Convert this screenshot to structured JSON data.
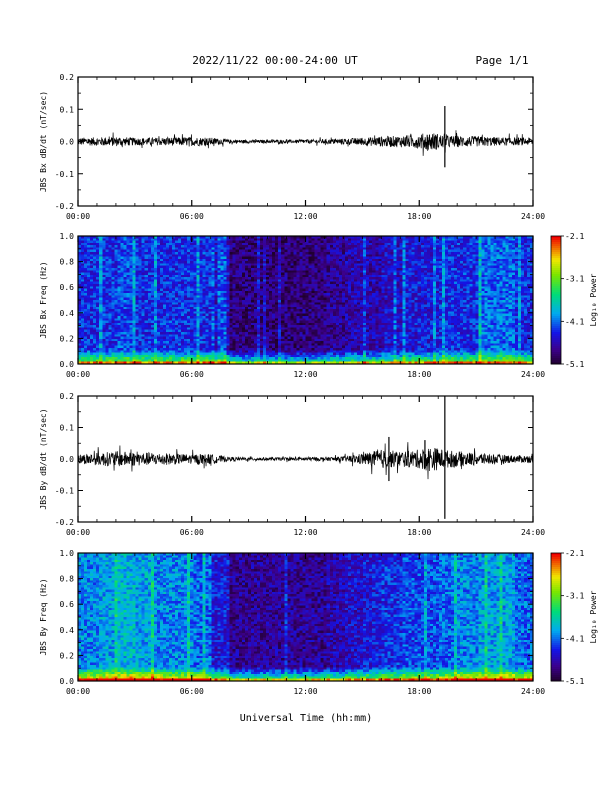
{
  "header": {
    "title": "2022/11/22  00:00-24:00 UT",
    "page": "Page 1/1"
  },
  "x_axis": {
    "label": "Universal Time (hh:mm)",
    "ticks": [
      "00:00",
      "06:00",
      "12:00",
      "18:00",
      "24:00"
    ]
  },
  "chart_data": [
    {
      "type": "line",
      "ylabel": "JBS Bx dB/dt (nT/sec)",
      "xlim": [
        0,
        24
      ],
      "ylim": [
        -0.2,
        0.2
      ],
      "yticks": [
        "0.2",
        "0.1",
        "0.0",
        "-0.1",
        "-0.2"
      ],
      "envelope": {
        "x_hours": [
          0,
          1,
          2,
          3,
          4,
          5,
          6,
          7,
          8,
          9,
          10,
          11,
          12,
          13,
          14,
          15,
          16,
          17,
          18,
          18.5,
          19,
          19.3,
          20,
          21,
          22,
          23,
          24
        ],
        "amplitude": [
          0.012,
          0.013,
          0.015,
          0.012,
          0.012,
          0.013,
          0.014,
          0.012,
          0.006,
          0.005,
          0.005,
          0.005,
          0.006,
          0.007,
          0.009,
          0.012,
          0.016,
          0.018,
          0.022,
          0.03,
          0.025,
          0.02,
          0.018,
          0.016,
          0.014,
          0.012,
          0.012
        ]
      },
      "spikes": [
        {
          "x_hour": 19.35,
          "max": 0.11,
          "min": -0.08
        }
      ]
    },
    {
      "type": "heatmap",
      "ylabel": "JBS Bx Freq (Hz)",
      "xlim": [
        0,
        24
      ],
      "ylim": [
        0.0,
        1.0
      ],
      "yticks": [
        "1.0",
        "0.8",
        "0.6",
        "0.4",
        "0.2",
        "0.0"
      ],
      "colorbar": {
        "label": "Log₁₀ Power",
        "ticks": [
          "-2.1",
          "-3.1",
          "-4.1",
          "-5.1"
        ],
        "range": [
          -5.1,
          -2.1
        ]
      },
      "level_by_hour": [
        -4.3,
        -4.3,
        -4.2,
        -4.3,
        -4.3,
        -4.3,
        -4.3,
        -4.5,
        -4.8,
        -4.8,
        -4.8,
        -4.8,
        -4.8,
        -4.7,
        -4.6,
        -4.6,
        -4.5,
        -4.4,
        -4.4,
        -4.3,
        -4.3,
        -4.1,
        -4.1,
        -4.3
      ],
      "low_freq_boost": 1.7
    },
    {
      "type": "line",
      "ylabel": "JBS By dB/dt (nT/sec)",
      "xlim": [
        0,
        24
      ],
      "ylim": [
        -0.2,
        0.2
      ],
      "yticks": [
        "0.2",
        "0.1",
        "0.0",
        "-0.1",
        "-0.2"
      ],
      "envelope": {
        "x_hours": [
          0,
          1,
          2,
          3,
          4,
          5,
          6,
          7,
          8,
          9,
          10,
          11,
          12,
          13,
          14,
          15,
          16,
          17,
          18,
          18.5,
          19,
          19.3,
          20,
          21,
          22,
          23,
          24
        ],
        "amplitude": [
          0.015,
          0.02,
          0.025,
          0.022,
          0.02,
          0.018,
          0.015,
          0.016,
          0.006,
          0.005,
          0.005,
          0.005,
          0.006,
          0.006,
          0.008,
          0.018,
          0.03,
          0.025,
          0.03,
          0.04,
          0.035,
          0.03,
          0.025,
          0.02,
          0.015,
          0.012,
          0.012
        ]
      },
      "spikes": [
        {
          "x_hour": 19.35,
          "max": 0.2,
          "min": -0.19
        },
        {
          "x_hour": 16.4,
          "max": 0.07,
          "min": -0.07
        },
        {
          "x_hour": 18.3,
          "max": 0.06,
          "min": -0.03
        }
      ]
    },
    {
      "type": "heatmap",
      "ylabel": "JBS By Freq (Hz)",
      "xlim": [
        0,
        24
      ],
      "ylim": [
        0.0,
        1.0
      ],
      "yticks": [
        "1.0",
        "0.8",
        "0.6",
        "0.4",
        "0.2",
        "0.0"
      ],
      "colorbar": {
        "label": "Log₁₀ Power",
        "ticks": [
          "-2.1",
          "-3.1",
          "-4.1",
          "-5.1"
        ],
        "range": [
          -5.1,
          -2.1
        ]
      },
      "level_by_hour": [
        -4.0,
        -3.9,
        -3.8,
        -3.9,
        -4.0,
        -4.0,
        -4.1,
        -4.4,
        -4.7,
        -4.7,
        -4.7,
        -4.7,
        -4.7,
        -4.6,
        -4.5,
        -4.4,
        -4.3,
        -4.2,
        -4.2,
        -4.1,
        -4.0,
        -3.9,
        -3.9,
        -4.1
      ],
      "low_freq_boost": 1.9
    }
  ]
}
